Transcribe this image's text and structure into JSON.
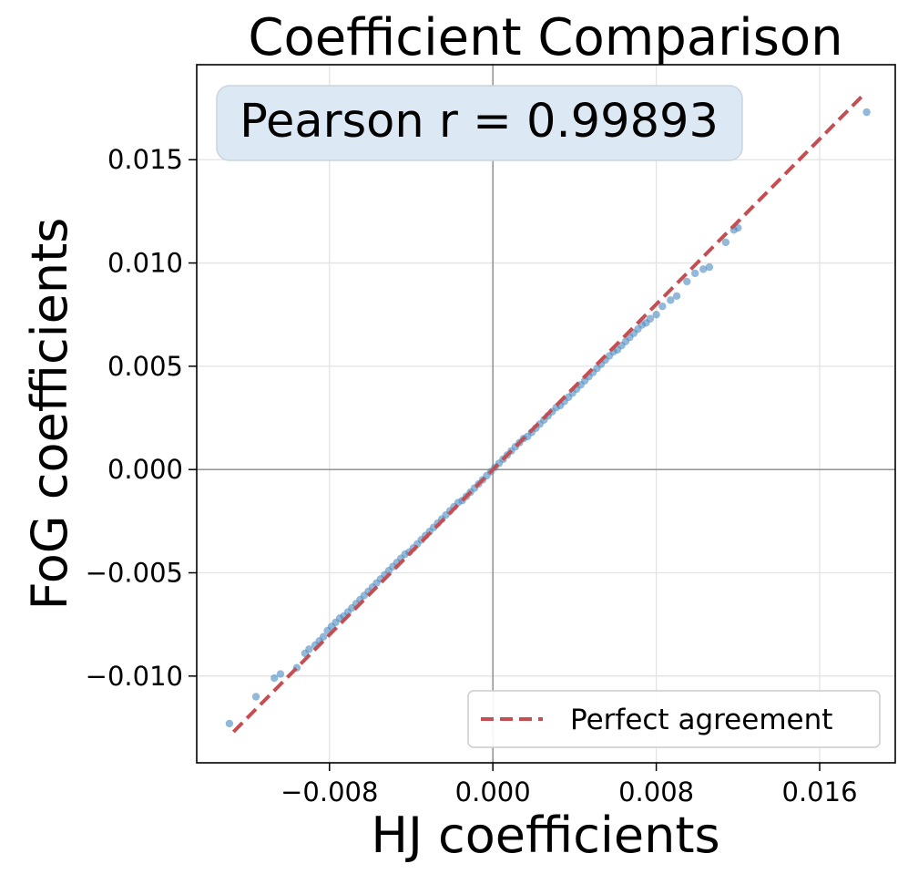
{
  "chart_data": {
    "type": "scatter",
    "title": "Coefficient Comparison",
    "xlabel": "HJ coefficients",
    "ylabel": "FoG coefficients",
    "xlim": [
      -0.0145,
      0.0197
    ],
    "ylim": [
      -0.0142,
      0.0196
    ],
    "xticks": [
      -0.008,
      0.0,
      0.008,
      0.016
    ],
    "xtick_labels": [
      "−0.008",
      "0.000",
      "0.008",
      "0.016"
    ],
    "yticks": [
      -0.01,
      -0.005,
      0.0,
      0.005,
      0.01,
      0.015
    ],
    "ytick_labels": [
      "−0.010",
      "−0.005",
      "0.000",
      "0.005",
      "0.010",
      "0.015"
    ],
    "grid": true,
    "zero_lines": true,
    "annotation": "Pearson r = 0.99893",
    "legend": {
      "placement": "lower-right",
      "entries": [
        "Perfect agreement"
      ]
    },
    "reference_line": {
      "name": "Perfect agreement",
      "x": [
        -0.0127,
        0.0181
      ],
      "y": [
        -0.0127,
        0.0181
      ],
      "color": "#c44e52",
      "style": "dashed"
    },
    "series": [
      {
        "name": "",
        "color": "#4a8bbf",
        "x": [
          -0.0129,
          -0.0116,
          -0.0107,
          -0.0104,
          -0.0096,
          -0.0092,
          -0.009,
          -0.0087,
          -0.0085,
          -0.0083,
          -0.0081,
          -0.0079,
          -0.0077,
          -0.0075,
          -0.0073,
          -0.0071,
          -0.0069,
          -0.0067,
          -0.0065,
          -0.0063,
          -0.0061,
          -0.0059,
          -0.0057,
          -0.0055,
          -0.0053,
          -0.0051,
          -0.0049,
          -0.0047,
          -0.0045,
          -0.0043,
          -0.0041,
          -0.0039,
          -0.0037,
          -0.0035,
          -0.0033,
          -0.0031,
          -0.0029,
          -0.0027,
          -0.0025,
          -0.0023,
          -0.0021,
          -0.0019,
          -0.0017,
          -0.0015,
          -0.0013,
          -0.0011,
          -0.0009,
          -0.0007,
          -0.0005,
          -0.0003,
          -0.0001,
          0.0001,
          0.0003,
          0.0005,
          0.0007,
          0.0009,
          0.0011,
          0.0013,
          0.0015,
          0.0017,
          0.0019,
          0.0021,
          0.0023,
          0.0025,
          0.0027,
          0.0029,
          0.0031,
          0.0033,
          0.0035,
          0.0037,
          0.0039,
          0.0041,
          0.0043,
          0.0045,
          0.0047,
          0.0049,
          0.0051,
          0.0053,
          0.0055,
          0.0057,
          0.0059,
          0.0061,
          0.0063,
          0.0065,
          0.0067,
          0.0069,
          0.0071,
          0.0073,
          0.0075,
          0.0077,
          0.008,
          0.0083,
          0.0087,
          0.009,
          0.0095,
          0.0099,
          0.0103,
          0.0106,
          0.0114,
          0.0118,
          0.012,
          0.0183
        ],
        "y": [
          -0.0123,
          -0.011,
          -0.0101,
          -0.0099,
          -0.0096,
          -0.0089,
          -0.0087,
          -0.0085,
          -0.0083,
          -0.0081,
          -0.0078,
          -0.0076,
          -0.0074,
          -0.0072,
          -0.0071,
          -0.0069,
          -0.0067,
          -0.0065,
          -0.0063,
          -0.0061,
          -0.0059,
          -0.0057,
          -0.0055,
          -0.0053,
          -0.0051,
          -0.0049,
          -0.0047,
          -0.0045,
          -0.0043,
          -0.0041,
          -0.004,
          -0.0038,
          -0.0036,
          -0.0034,
          -0.0032,
          -0.003,
          -0.0028,
          -0.0026,
          -0.0024,
          -0.0022,
          -0.002,
          -0.0018,
          -0.0016,
          -0.0015,
          -0.0013,
          -0.0011,
          -0.0009,
          -0.0007,
          -0.0005,
          -0.0003,
          -0.0001,
          0.0001,
          0.0003,
          0.0005,
          0.0007,
          0.0009,
          0.0011,
          0.0013,
          0.0015,
          0.0016,
          0.0018,
          0.002,
          0.0022,
          0.0024,
          0.0026,
          0.0028,
          0.003,
          0.0031,
          0.0033,
          0.0035,
          0.0037,
          0.0039,
          0.0041,
          0.0043,
          0.0045,
          0.0047,
          0.0049,
          0.0051,
          0.0053,
          0.0055,
          0.0057,
          0.0058,
          0.006,
          0.0062,
          0.0064,
          0.0066,
          0.0068,
          0.007,
          0.0071,
          0.0073,
          0.0075,
          0.0079,
          0.0082,
          0.0084,
          0.0091,
          0.0095,
          0.0097,
          0.0098,
          0.011,
          0.0116,
          0.0117,
          0.0173
        ]
      }
    ]
  }
}
